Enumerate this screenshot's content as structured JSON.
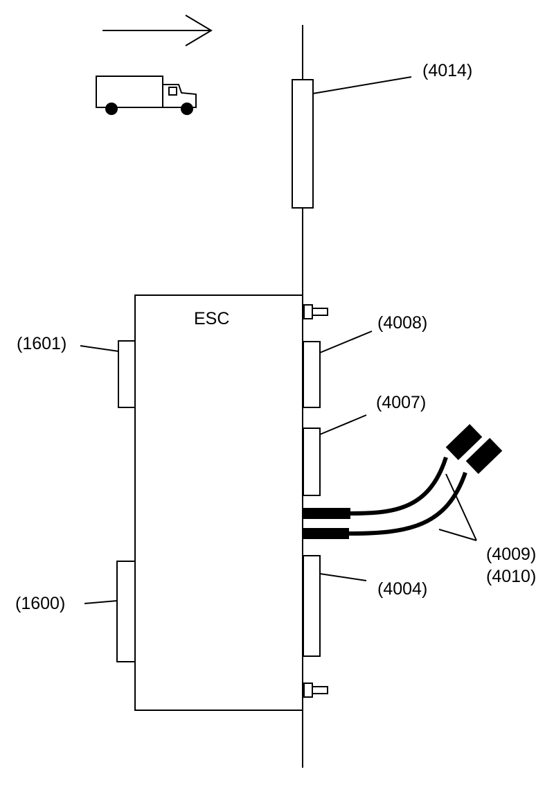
{
  "labels": {
    "esc": "ESC",
    "ref_4014": "(4014)",
    "ref_4008": "(4008)",
    "ref_4007": "(4007)",
    "ref_1601": "(1601)",
    "ref_1600": "(1600)",
    "ref_4004": "(4004)",
    "ref_4009": "(4009)",
    "ref_4010": "(4010)"
  },
  "icons": {
    "direction": "arrow-right-icon",
    "vehicle": "truck-icon",
    "fastener": "bolt-icon"
  },
  "colors": {
    "line": "#000000",
    "background": "#ffffff"
  }
}
